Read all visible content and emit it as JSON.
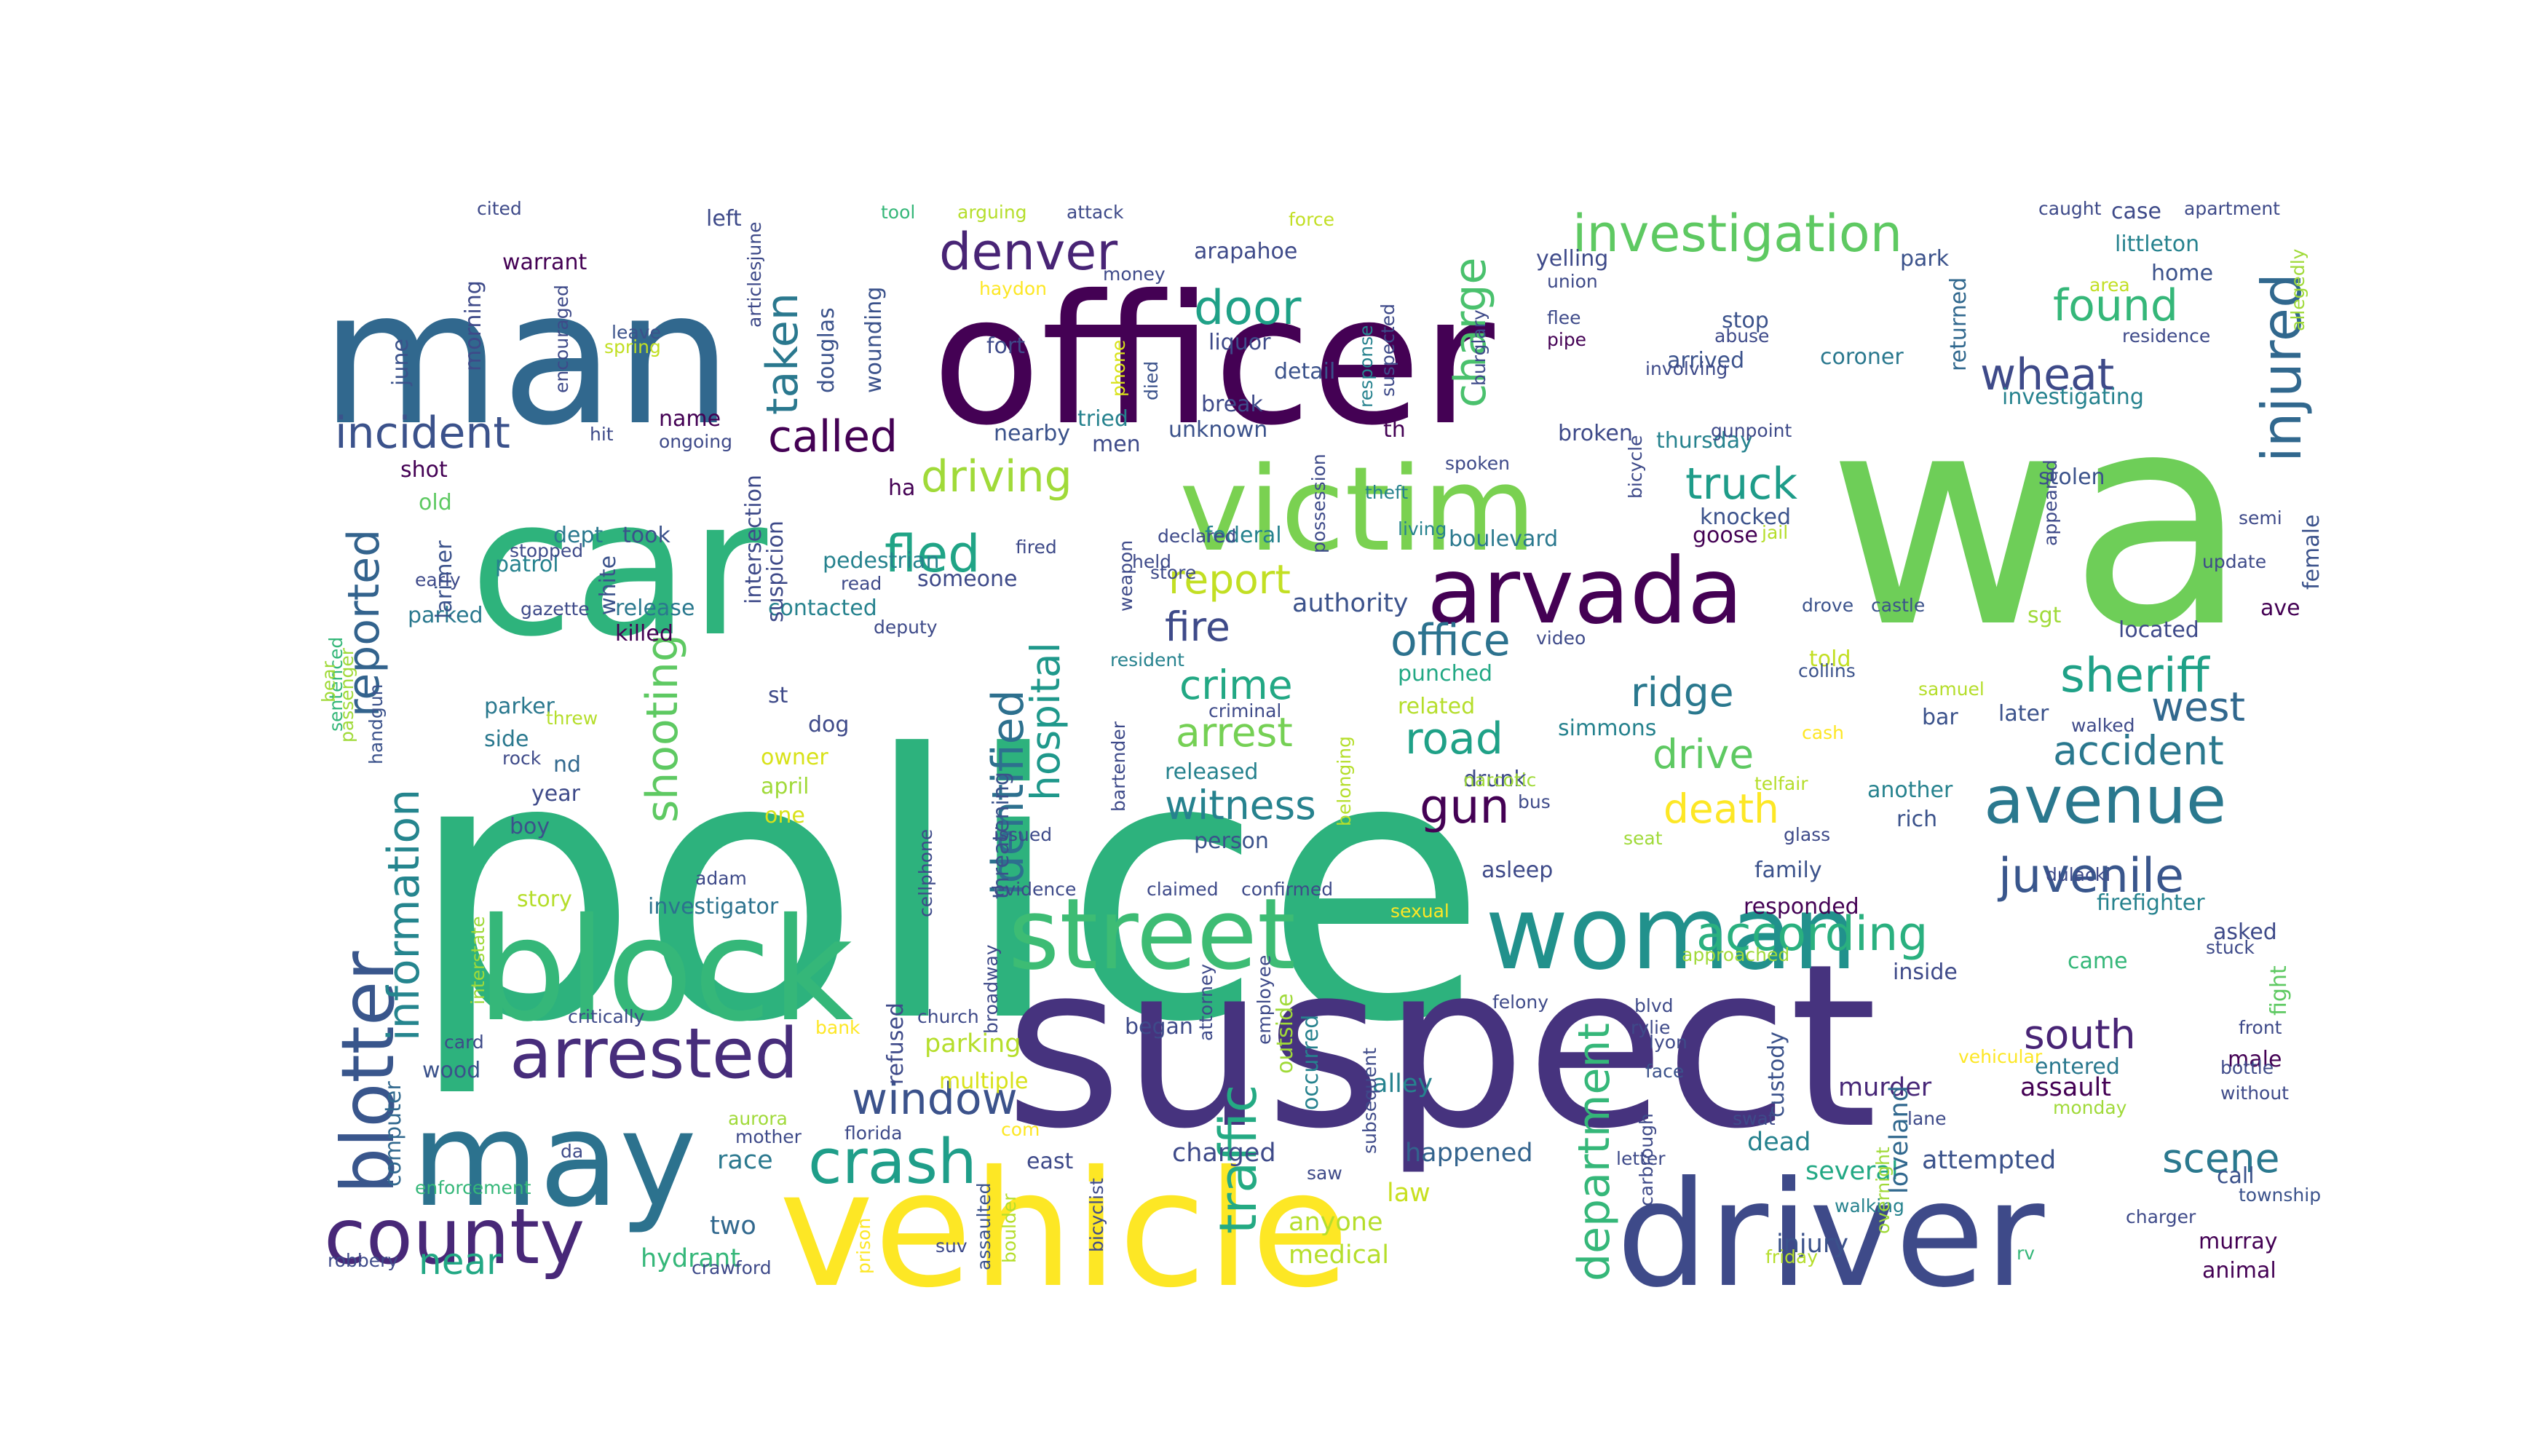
{
  "image": {
    "type": "word-cloud",
    "background": "#ffffff",
    "palette": [
      "#440154",
      "#46337e",
      "#365c8d",
      "#277f8e",
      "#1fa187",
      "#4ac16d",
      "#a0da39",
      "#fde725"
    ]
  },
  "words": [
    {
      "text": "police",
      "color": "#2db27d"
    },
    {
      "text": "wa",
      "color": "#6ece58"
    },
    {
      "text": "suspect",
      "color": "#46337e"
    },
    {
      "text": "officer",
      "color": "#440154"
    },
    {
      "text": "man",
      "color": "#31688e"
    },
    {
      "text": "car",
      "color": "#2eb37c"
    },
    {
      "text": "vehicle",
      "color": "#fde725"
    },
    {
      "text": "driver",
      "color": "#3e4a89"
    },
    {
      "text": "block",
      "color": "#35b779"
    },
    {
      "text": "may",
      "color": "#2c728e"
    },
    {
      "text": "victim",
      "color": "#7ad151"
    },
    {
      "text": "woman",
      "color": "#21918c"
    },
    {
      "text": "street",
      "color": "#3dbc74"
    },
    {
      "text": "arvada",
      "color": "#440154"
    },
    {
      "text": "county",
      "color": "#482878"
    },
    {
      "text": "blotter",
      "color": "#39568c"
    },
    {
      "text": "arrested",
      "color": "#472d7b"
    },
    {
      "text": "crash",
      "color": "#1f9e89"
    },
    {
      "text": "investigation",
      "color": "#5ec962"
    },
    {
      "text": "injured",
      "color": "#31688e"
    },
    {
      "text": "avenue",
      "color": "#2a788e"
    },
    {
      "text": "denver",
      "color": "#482475"
    },
    {
      "text": "according",
      "color": "#2ab07f"
    },
    {
      "text": "traffic",
      "color": "#24aa83"
    },
    {
      "text": "department",
      "color": "#35b779"
    },
    {
      "text": "incident",
      "color": "#3b528b"
    },
    {
      "text": "fled",
      "color": "#20a486"
    },
    {
      "text": "driving",
      "color": "#a0da39"
    },
    {
      "text": "juvenile",
      "color": "#39568c"
    },
    {
      "text": "sheriff",
      "color": "#1fa187"
    },
    {
      "text": "called",
      "color": "#440154"
    },
    {
      "text": "truck",
      "color": "#1e9c89"
    },
    {
      "text": "found",
      "color": "#35b779"
    },
    {
      "text": "wheat",
      "color": "#3e4a89"
    },
    {
      "text": "door",
      "color": "#1fa187"
    },
    {
      "text": "charge",
      "color": "#4ac16d"
    },
    {
      "text": "taken",
      "color": "#2a788e"
    },
    {
      "text": "reported",
      "color": "#33638d"
    },
    {
      "text": "information",
      "color": "#25858e"
    },
    {
      "text": "identified",
      "color": "#2d708e"
    },
    {
      "text": "hospital",
      "color": "#1f988b"
    },
    {
      "text": "shooting",
      "color": "#5ec962"
    },
    {
      "text": "window",
      "color": "#3b528b"
    },
    {
      "text": "report",
      "color": "#c2df23"
    },
    {
      "text": "office",
      "color": "#2c728e"
    },
    {
      "text": "fire",
      "color": "#3e4a89"
    },
    {
      "text": "crime",
      "color": "#22a884"
    },
    {
      "text": "arrest",
      "color": "#75d054"
    },
    {
      "text": "witness",
      "color": "#26828e"
    },
    {
      "text": "road",
      "color": "#1fa187"
    },
    {
      "text": "ridge",
      "color": "#2a788e"
    },
    {
      "text": "drive",
      "color": "#5ec962"
    },
    {
      "text": "gun",
      "color": "#440154"
    },
    {
      "text": "death",
      "color": "#fde725"
    },
    {
      "text": "accident",
      "color": "#2a788e"
    },
    {
      "text": "west",
      "color": "#31688e"
    },
    {
      "text": "scene",
      "color": "#2a788e"
    },
    {
      "text": "south",
      "color": "#482475"
    },
    {
      "text": "near",
      "color": "#22a884"
    },
    {
      "text": "two",
      "color": "#31688e"
    },
    {
      "text": "hydrant",
      "color": "#35b779"
    },
    {
      "text": "happened",
      "color": "#33638d"
    },
    {
      "text": "charged",
      "color": "#3e4a89"
    },
    {
      "text": "anyone",
      "color": "#b5de2b"
    },
    {
      "text": "medical",
      "color": "#b5de2b"
    },
    {
      "text": "law",
      "color": "#c8e020"
    },
    {
      "text": "attempted",
      "color": "#3b528b"
    },
    {
      "text": "injury",
      "color": "#3b528b"
    },
    {
      "text": "several",
      "color": "#22a884"
    },
    {
      "text": "dead",
      "color": "#26828e"
    },
    {
      "text": "murray",
      "color": "#440154"
    },
    {
      "text": "animal",
      "color": "#440154"
    },
    {
      "text": "assault",
      "color": "#440154"
    },
    {
      "text": "entered",
      "color": "#2a788e"
    },
    {
      "text": "murder",
      "color": "#482878"
    },
    {
      "text": "custody",
      "color": "#3b528b"
    },
    {
      "text": "loveland",
      "color": "#31688e"
    },
    {
      "text": "alley",
      "color": "#26828e"
    },
    {
      "text": "began",
      "color": "#3e4a89"
    },
    {
      "text": "occurred",
      "color": "#26828e"
    },
    {
      "text": "outside",
      "color": "#a0da39"
    },
    {
      "text": "parking",
      "color": "#b5de2b"
    },
    {
      "text": "multiple",
      "color": "#d8e219"
    },
    {
      "text": "refused",
      "color": "#3e4a89"
    },
    {
      "text": "investigator",
      "color": "#2c728e"
    },
    {
      "text": "story",
      "color": "#b5de2b"
    },
    {
      "text": "race",
      "color": "#2a788e"
    },
    {
      "text": "east",
      "color": "#3e4a89"
    },
    {
      "text": "wood",
      "color": "#3b528b"
    },
    {
      "text": "computer",
      "color": "#31688e"
    },
    {
      "text": "boy",
      "color": "#3b528b"
    },
    {
      "text": "year",
      "color": "#3e4a89"
    },
    {
      "text": "nd",
      "color": "#31688e"
    },
    {
      "text": "side",
      "color": "#2a788e"
    },
    {
      "text": "parker",
      "color": "#2a788e"
    },
    {
      "text": "owner",
      "color": "#d8e219"
    },
    {
      "text": "april",
      "color": "#a0da39"
    },
    {
      "text": "one",
      "color": "#d8e219"
    },
    {
      "text": "dog",
      "color": "#3e4a89"
    },
    {
      "text": "st",
      "color": "#3e4a89"
    },
    {
      "text": "killed",
      "color": "#440154"
    },
    {
      "text": "release",
      "color": "#2a788e"
    },
    {
      "text": "parked",
      "color": "#2a788e"
    },
    {
      "text": "contacted",
      "color": "#26828e"
    },
    {
      "text": "pedestrian",
      "color": "#26828e"
    },
    {
      "text": "someone",
      "color": "#3e4a89"
    },
    {
      "text": "authority",
      "color": "#3b528b"
    },
    {
      "text": "released",
      "color": "#26828e"
    },
    {
      "text": "person",
      "color": "#3b528b"
    },
    {
      "text": "federal",
      "color": "#26828e"
    },
    {
      "text": "punched",
      "color": "#22a884"
    },
    {
      "text": "related",
      "color": "#b5de2b"
    },
    {
      "text": "drunk",
      "color": "#3e4a89"
    },
    {
      "text": "asleep",
      "color": "#3e4a89"
    },
    {
      "text": "simmons",
      "color": "#26828e"
    },
    {
      "text": "family",
      "color": "#3b528b"
    },
    {
      "text": "responded",
      "color": "#440154"
    },
    {
      "text": "firefighter",
      "color": "#26828e"
    },
    {
      "text": "asked",
      "color": "#3e4a89"
    },
    {
      "text": "came",
      "color": "#35b779"
    },
    {
      "text": "inside",
      "color": "#3e4a89"
    },
    {
      "text": "another",
      "color": "#26828e"
    },
    {
      "text": "rich",
      "color": "#3b528b"
    },
    {
      "text": "bar",
      "color": "#3b528b"
    },
    {
      "text": "later",
      "color": "#3b528b"
    },
    {
      "text": "told",
      "color": "#c2df23"
    },
    {
      "text": "located",
      "color": "#3e4a89"
    },
    {
      "text": "ave",
      "color": "#440154"
    },
    {
      "text": "sgt",
      "color": "#a0da39"
    },
    {
      "text": "knocked",
      "color": "#3b528b"
    },
    {
      "text": "goose",
      "color": "#440154"
    },
    {
      "text": "boulevard",
      "color": "#2a788e"
    },
    {
      "text": "stolen",
      "color": "#3b528b"
    },
    {
      "text": "female",
      "color": "#3b528b"
    },
    {
      "text": "thursday",
      "color": "#26828e"
    },
    {
      "text": "broken",
      "color": "#3e4a89"
    },
    {
      "text": "unknown",
      "color": "#3b528b"
    },
    {
      "text": "detail",
      "color": "#3b528b"
    },
    {
      "text": "break",
      "color": "#3e4a89"
    },
    {
      "text": "liquor",
      "color": "#3e4a89"
    },
    {
      "text": "arapahoe",
      "color": "#3e4a89"
    },
    {
      "text": "fort",
      "color": "#3e4a89"
    },
    {
      "text": "tried",
      "color": "#26828e"
    },
    {
      "text": "men",
      "color": "#3e4a89"
    },
    {
      "text": "nearby",
      "color": "#3b528b"
    },
    {
      "text": "douglas",
      "color": "#3b528b"
    },
    {
      "text": "wounding",
      "color": "#3b528b"
    },
    {
      "text": "warrant",
      "color": "#440154"
    },
    {
      "text": "left",
      "color": "#3e4a89"
    },
    {
      "text": "name",
      "color": "#440154"
    },
    {
      "text": "morning",
      "color": "#3e4a89"
    },
    {
      "text": "june",
      "color": "#3b528b"
    },
    {
      "text": "shot",
      "color": "#440154"
    },
    {
      "text": "old",
      "color": "#5ec962"
    },
    {
      "text": "dept",
      "color": "#2a788e"
    },
    {
      "text": "took",
      "color": "#3b528b"
    },
    {
      "text": "patrol",
      "color": "#26828e"
    },
    {
      "text": "larimer",
      "color": "#3b528b"
    },
    {
      "text": "white",
      "color": "#3b528b"
    },
    {
      "text": "intersection",
      "color": "#3e4a89"
    },
    {
      "text": "suspicion",
      "color": "#3e4a89"
    },
    {
      "text": "threatening",
      "color": "#3b528b"
    },
    {
      "text": "ha",
      "color": "#440154"
    },
    {
      "text": "th",
      "color": "#440154"
    },
    {
      "text": "arrived",
      "color": "#3b528b"
    },
    {
      "text": "stop",
      "color": "#3b528b"
    },
    {
      "text": "coroner",
      "color": "#2a788e"
    },
    {
      "text": "returned",
      "color": "#31688e"
    },
    {
      "text": "investigating",
      "color": "#26828e"
    },
    {
      "text": "littleton",
      "color": "#26828e"
    },
    {
      "text": "home",
      "color": "#3b528b"
    },
    {
      "text": "park",
      "color": "#3b528b"
    },
    {
      "text": "case",
      "color": "#3e4a89"
    },
    {
      "text": "yelling",
      "color": "#3e4a89"
    },
    {
      "text": "allegedly",
      "color": "#a0da39"
    },
    {
      "text": "area",
      "color": "#c2df23"
    },
    {
      "text": "call",
      "color": "#3b528b"
    },
    {
      "text": "fight",
      "color": "#5ec962"
    },
    {
      "text": "male",
      "color": "#440154"
    },
    {
      "text": "front",
      "color": "#3e4a89"
    },
    {
      "text": "sentenced",
      "color": "#35b779"
    },
    {
      "text": "handgun",
      "color": "#3b528b"
    },
    {
      "text": "passenger",
      "color": "#a0da39"
    },
    {
      "text": "bear",
      "color": "#a0da39"
    },
    {
      "text": "video",
      "color": "#3e4a89"
    },
    {
      "text": "weapon",
      "color": "#3e4a89"
    },
    {
      "text": "monday",
      "color": "#a0da39"
    },
    {
      "text": "walking",
      "color": "#26828e"
    },
    {
      "text": "friday",
      "color": "#b5de2b"
    },
    {
      "text": "rv",
      "color": "#35b779"
    },
    {
      "text": "pipe",
      "color": "#440154"
    },
    {
      "text": "response",
      "color": "#26828e"
    },
    {
      "text": "felony",
      "color": "#3e4a89"
    },
    {
      "text": "rylie",
      "color": "#3e4a89"
    },
    {
      "text": "lyon",
      "color": "#3e4a89"
    },
    {
      "text": "blvd",
      "color": "#3e4a89"
    },
    {
      "text": "face",
      "color": "#3b528b"
    },
    {
      "text": "swat",
      "color": "#3e4a89"
    },
    {
      "text": "scarbrough",
      "color": "#3e4a89"
    },
    {
      "text": "letter",
      "color": "#3e4a89"
    },
    {
      "text": "saw",
      "color": "#3e4a89"
    },
    {
      "text": "vehicular",
      "color": "#fde725"
    },
    {
      "text": "bicycle",
      "color": "#3e4a89"
    },
    {
      "text": "spoken",
      "color": "#3e4a89"
    },
    {
      "text": "living",
      "color": "#26828e"
    },
    {
      "text": "theft",
      "color": "#26828e"
    },
    {
      "text": "jail",
      "color": "#b5de2b"
    },
    {
      "text": "cash",
      "color": "#fde725"
    },
    {
      "text": "collins",
      "color": "#3b528b"
    },
    {
      "text": "walked",
      "color": "#3e4a89"
    },
    {
      "text": "update",
      "color": "#3e4a89"
    },
    {
      "text": "appeared",
      "color": "#3e4a89"
    },
    {
      "text": "samuel",
      "color": "#b5de2b"
    },
    {
      "text": "drove",
      "color": "#3b528b"
    },
    {
      "text": "castle",
      "color": "#3b528b"
    },
    {
      "text": "telfair",
      "color": "#b5de2b"
    },
    {
      "text": "dulacki",
      "color": "#3e4a89"
    },
    {
      "text": "semi",
      "color": "#3e4a89"
    },
    {
      "text": "residence",
      "color": "#3e4a89"
    },
    {
      "text": "caught",
      "color": "#3e4a89"
    },
    {
      "text": "apartment",
      "color": "#3e4a89"
    },
    {
      "text": "glass",
      "color": "#3e4a89"
    },
    {
      "text": "bottle",
      "color": "#3e4a89"
    },
    {
      "text": "without",
      "color": "#3e4a89"
    },
    {
      "text": "township",
      "color": "#3b528b"
    },
    {
      "text": "charger",
      "color": "#3e4a89"
    },
    {
      "text": "stuck",
      "color": "#3e4a89"
    },
    {
      "text": "overnight",
      "color": "#a0da39"
    },
    {
      "text": "lane",
      "color": "#3e4a89"
    },
    {
      "text": "approached",
      "color": "#a0da39"
    },
    {
      "text": "sexual",
      "color": "#fde725"
    },
    {
      "text": "seat",
      "color": "#a0da39"
    },
    {
      "text": "bus",
      "color": "#3e4a89"
    },
    {
      "text": "narcotic",
      "color": "#a0da39"
    },
    {
      "text": "declared",
      "color": "#3e4a89"
    },
    {
      "text": "store",
      "color": "#3e4a89"
    },
    {
      "text": "possession",
      "color": "#3e4a89"
    },
    {
      "text": "held",
      "color": "#3e4a89"
    },
    {
      "text": "gunpoint",
      "color": "#3e4a89"
    },
    {
      "text": "involving",
      "color": "#3e4a89"
    },
    {
      "text": "abuse",
      "color": "#3e4a89"
    },
    {
      "text": "flee",
      "color": "#3e4a89"
    },
    {
      "text": "union",
      "color": "#3e4a89"
    },
    {
      "text": "burglary",
      "color": "#3e4a89"
    },
    {
      "text": "suspected",
      "color": "#3e4a89"
    },
    {
      "text": "force",
      "color": "#c2df23"
    },
    {
      "text": "attack",
      "color": "#3e4a89"
    },
    {
      "text": "money",
      "color": "#3e4a89"
    },
    {
      "text": "died",
      "color": "#3b528b"
    },
    {
      "text": "phone",
      "color": "#d8e219"
    },
    {
      "text": "haydon",
      "color": "#fde725"
    },
    {
      "text": "arguing",
      "color": "#b5de2b"
    },
    {
      "text": "tool",
      "color": "#35b779"
    },
    {
      "text": "cited",
      "color": "#3e4a89"
    },
    {
      "text": "leave",
      "color": "#3b528b"
    },
    {
      "text": "spring",
      "color": "#c2df23"
    },
    {
      "text": "articlesjune",
      "color": "#3e4a89"
    },
    {
      "text": "encouraged",
      "color": "#3e4a89"
    },
    {
      "text": "ongoing",
      "color": "#3e4a89"
    },
    {
      "text": "hit",
      "color": "#3e4a89"
    },
    {
      "text": "stopped",
      "color": "#3e4a89"
    },
    {
      "text": "read",
      "color": "#3e4a89"
    },
    {
      "text": "early",
      "color": "#3e4a89"
    },
    {
      "text": "gazette",
      "color": "#3e4a89"
    },
    {
      "text": "critically",
      "color": "#3e4a89"
    },
    {
      "text": "deputy",
      "color": "#3e4a89"
    },
    {
      "text": "threw",
      "color": "#b5de2b"
    },
    {
      "text": "rock",
      "color": "#3e4a89"
    },
    {
      "text": "adam",
      "color": "#3e4a89"
    },
    {
      "text": "interstate",
      "color": "#a0da39"
    },
    {
      "text": "card",
      "color": "#3e4a89"
    },
    {
      "text": "bank",
      "color": "#fde725"
    },
    {
      "text": "church",
      "color": "#3e4a89"
    },
    {
      "text": "aurora",
      "color": "#a0da39"
    },
    {
      "text": "mother",
      "color": "#3e4a89"
    },
    {
      "text": "florida",
      "color": "#3e4a89"
    },
    {
      "text": "com",
      "color": "#fde725"
    },
    {
      "text": "da",
      "color": "#3e4a89"
    },
    {
      "text": "enforcement",
      "color": "#35b779"
    },
    {
      "text": "robbery",
      "color": "#3e4a89"
    },
    {
      "text": "crawford",
      "color": "#3e4a89"
    },
    {
      "text": "suv",
      "color": "#3e4a89"
    },
    {
      "text": "prison",
      "color": "#fde725"
    },
    {
      "text": "boulder",
      "color": "#b5de2b"
    },
    {
      "text": "assaulted",
      "color": "#3b528b"
    },
    {
      "text": "bicyclist",
      "color": "#3e4a89"
    },
    {
      "text": "broadway",
      "color": "#3e4a89"
    },
    {
      "text": "cellphone",
      "color": "#3e4a89"
    },
    {
      "text": "evidence",
      "color": "#3e4a89"
    },
    {
      "text": "issued",
      "color": "#3e4a89"
    },
    {
      "text": "claimed",
      "color": "#3e4a89"
    },
    {
      "text": "confirmed",
      "color": "#3e4a89"
    },
    {
      "text": "attorney",
      "color": "#3e4a89"
    },
    {
      "text": "employee",
      "color": "#3e4a89"
    },
    {
      "text": "subsequent",
      "color": "#3e4a89"
    },
    {
      "text": "bartender",
      "color": "#3e4a89"
    },
    {
      "text": "belonging",
      "color": "#b5de2b"
    },
    {
      "text": "resident",
      "color": "#26828e"
    },
    {
      "text": "criminal",
      "color": "#3e4a89"
    },
    {
      "text": "fired",
      "color": "#3e4a89"
    }
  ]
}
